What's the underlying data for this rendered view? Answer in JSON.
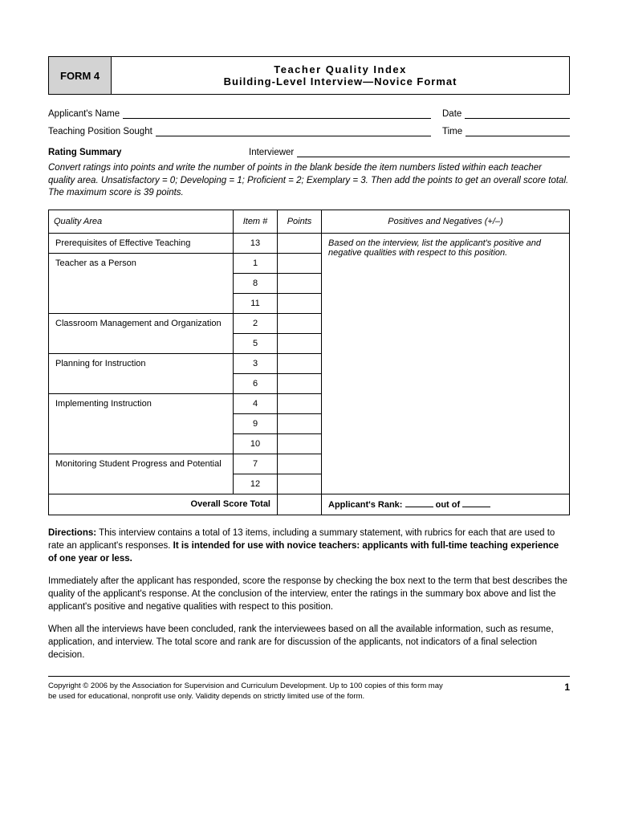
{
  "header": {
    "badge": "FORM 4",
    "title_line1": "Teacher Quality Index",
    "title_line2": "Building-Level Interview—Novice Format"
  },
  "fields": {
    "applicant_name_label": "Applicant's Name",
    "date_label": "Date",
    "position_label": "Teaching Position Sought",
    "time_label": "Time",
    "rating_summary_label": "Rating Summary",
    "interviewer_label": "Interviewer"
  },
  "instructions": "Convert ratings into points and write the number of points in the blank beside the item numbers listed within each teacher quality area. Unsatisfactory = 0; Developing = 1; Proficient = 2; Exemplary = 3. Then add the points to get an overall score total. The maximum score is 39 points.",
  "table": {
    "headers": {
      "quality_area": "Quality Area",
      "item": "Item #",
      "points": "Points",
      "positives": "Positives and Negatives (+/–)"
    },
    "rows": [
      {
        "area": "Prerequisites of Effective Teaching",
        "items": [
          "13"
        ]
      },
      {
        "area": "Teacher as a Person",
        "items": [
          "1",
          "8",
          "11"
        ]
      },
      {
        "area": "Classroom Management and Organization",
        "items": [
          "2",
          "5"
        ]
      },
      {
        "area": "Planning for Instruction",
        "items": [
          "3",
          "6"
        ]
      },
      {
        "area": "Implementing Instruction",
        "items": [
          "4",
          "9",
          "10"
        ]
      },
      {
        "area": "Monitoring Student Progress and Potential",
        "items": [
          "7",
          "12"
        ]
      }
    ],
    "positives_note": "Based on the interview, list the applicant's positive and negative qualities with respect to this position.",
    "overall_label": "Overall Score Total",
    "rank_label": "Applicant's Rank:",
    "rank_out_of": "out of"
  },
  "directions": {
    "lead": "Directions:",
    "p1a": " This interview contains a total of 13 items, including a summary statement, with rubrics for each that are used to rate an applicant's responses. ",
    "p1b": "It is intended for use with novice teachers: applicants with full-time teaching experience of one year or less.",
    "p2": "Immediately after the applicant has responded, score the response by checking the box next to the term that best describes the quality of the applicant's response. At the conclusion of the interview, enter the ratings in the summary box above and list the applicant's positive and negative qualities with respect to this position.",
    "p3": "When all the interviews have been concluded, rank the interviewees based on all the available information, such as resume, application, and interview. The total score and rank are for discussion of the applicants, not indicators of a final selection decision."
  },
  "footer": {
    "copyright": "Copyright © 2006 by the Association for Supervision and Curriculum Development. Up to 100 copies of this form may be used for educational, nonprofit use only. Validity depends on strictly limited use of the form.",
    "page": "1"
  }
}
